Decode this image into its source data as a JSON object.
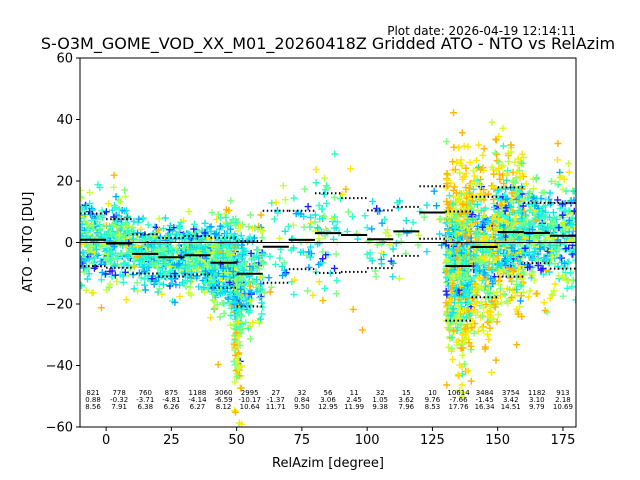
{
  "plot_date_text": "Plot date: 2026-04-19 12:14:11",
  "chart_data": {
    "type": "scatter",
    "title": "S-O3M_GOME_VOD_XX_M01_20260418Z Gridded ATO - NTO vs RelAzim",
    "xlabel": "RelAzim [degree]",
    "ylabel": "ATO - NTO [DU]",
    "xlim": [
      -10,
      180
    ],
    "ylim": [
      -60,
      60
    ],
    "x_ticks": [
      0,
      25,
      50,
      75,
      100,
      125,
      150,
      175
    ],
    "y_ticks": [
      -60,
      -40,
      -20,
      0,
      20,
      40,
      60
    ],
    "x_tick_labels": [
      "0",
      "25",
      "50",
      "75",
      "100",
      "125",
      "150",
      "175"
    ],
    "y_tick_labels": [
      "−60",
      "−40",
      "−20",
      "0",
      "20",
      "40",
      "60"
    ],
    "marker": "+",
    "reference_line_y": 0,
    "point_colors": [
      "#1f1fff",
      "#00a8ff",
      "#14e3e8",
      "#2cffc8",
      "#7cff7c",
      "#c8ff32",
      "#ffe600",
      "#ffb400"
    ],
    "bins": [
      {
        "x_center": -5,
        "count": "821",
        "mean": "0.88",
        "std": "8.56",
        "mean_value": 0.88,
        "std_value": 8.56
      },
      {
        "x_center": 5,
        "count": "778",
        "mean": "-0.32",
        "std": "7.91",
        "mean_value": -0.32,
        "std_value": 7.91
      },
      {
        "x_center": 15,
        "count": "760",
        "mean": "-3.71",
        "std": "6.38",
        "mean_value": -3.71,
        "std_value": 6.38
      },
      {
        "x_center": 25,
        "count": "875",
        "mean": "-4.81",
        "std": "6.26",
        "mean_value": -4.81,
        "std_value": 6.26
      },
      {
        "x_center": 35,
        "count": "1188",
        "mean": "-4.14",
        "std": "6.27",
        "mean_value": -4.14,
        "std_value": 6.27
      },
      {
        "x_center": 45,
        "count": "3060",
        "mean": "-6.59",
        "std": "8.12",
        "mean_value": -6.59,
        "std_value": 8.12
      },
      {
        "x_center": 55,
        "count": "2995",
        "mean": "-10.17",
        "std": "10.64",
        "mean_value": -10.17,
        "std_value": 10.64
      },
      {
        "x_center": 65,
        "count": "27",
        "mean": "-1.37",
        "std": "11.71",
        "mean_value": -1.37,
        "std_value": 11.71
      },
      {
        "x_center": 75,
        "count": "32",
        "mean": "0.84",
        "std": "9.50",
        "mean_value": 0.84,
        "std_value": 9.5
      },
      {
        "x_center": 85,
        "count": "56",
        "mean": "3.06",
        "std": "12.95",
        "mean_value": 3.06,
        "std_value": 12.95
      },
      {
        "x_center": 95,
        "count": "11",
        "mean": "2.45",
        "std": "11.99",
        "mean_value": 2.45,
        "std_value": 11.99
      },
      {
        "x_center": 105,
        "count": "32",
        "mean": "1.05",
        "std": "9.38",
        "mean_value": 1.05,
        "std_value": 9.38
      },
      {
        "x_center": 115,
        "count": "15",
        "mean": "3.62",
        "std": "7.96",
        "mean_value": 3.62,
        "std_value": 7.96
      },
      {
        "x_center": 125,
        "count": "10",
        "mean": "9.76",
        "std": "8.53",
        "mean_value": 9.76,
        "std_value": 8.53
      },
      {
        "x_center": 135,
        "count": "10614",
        "mean": "-7.66",
        "std": "17.76",
        "mean_value": -7.66,
        "std_value": 17.76
      },
      {
        "x_center": 145,
        "count": "3484",
        "mean": "-1.45",
        "std": "16.34",
        "mean_value": -1.45,
        "std_value": 16.34
      },
      {
        "x_center": 155,
        "count": "3754",
        "mean": "3.42",
        "std": "14.51",
        "mean_value": 3.42,
        "std_value": 14.51
      },
      {
        "x_center": 165,
        "count": "1182",
        "mean": "3.10",
        "std": "9.79",
        "mean_value": 3.1,
        "std_value": 9.79
      },
      {
        "x_center": 175,
        "count": "913",
        "mean": "2.18",
        "std": "10.69",
        "mean_value": 2.18,
        "std_value": 10.69
      }
    ]
  }
}
